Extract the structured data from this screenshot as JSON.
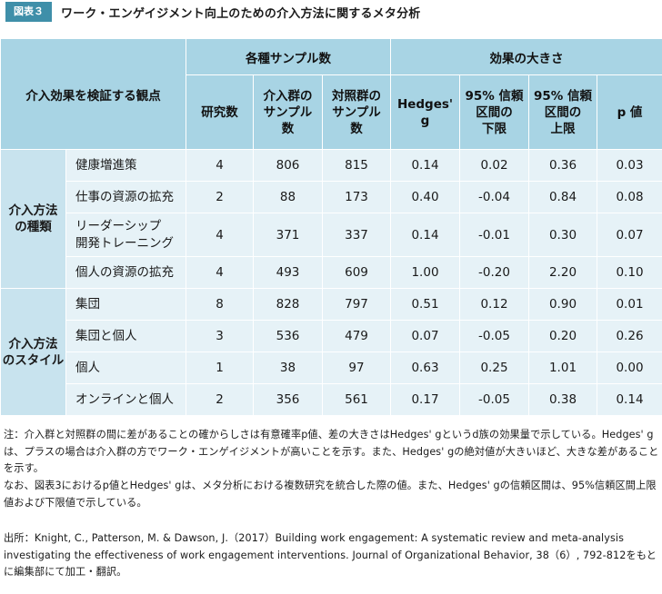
{
  "figure": {
    "label": "図表３",
    "title": "ワーク・エンゲイジメント向上のための介入方法に関するメタ分析"
  },
  "table": {
    "header": {
      "perspective": "介入効果を検証する観点",
      "group_sample": "各種サンプル数",
      "group_effect": "効果の大きさ",
      "studies": "研究数",
      "intervention_n": "介入群の\nサンプル\n数",
      "control_n": "対照群の\nサンプル\n数",
      "hedges_g": "Hedges' g",
      "ci_lower": "95% 信頼\n区間の\n下限",
      "ci_upper": "95% 信頼\n区間の\n上限",
      "p_value": "p 値"
    },
    "groups": [
      {
        "name": "介入方法\nの種類",
        "rows": [
          {
            "label": "健康増進策",
            "studies": "4",
            "intervention_n": "806",
            "control_n": "815",
            "g": "0.14",
            "lower": "0.02",
            "upper": "0.36",
            "p": "0.03"
          },
          {
            "label": "仕事の資源の拡充",
            "studies": "2",
            "intervention_n": "88",
            "control_n": "173",
            "g": "0.40",
            "lower": "-0.04",
            "upper": "0.84",
            "p": "0.08"
          },
          {
            "label": "リーダーシップ\n開発トレーニング",
            "studies": "4",
            "intervention_n": "371",
            "control_n": "337",
            "g": "0.14",
            "lower": "-0.01",
            "upper": "0.30",
            "p": "0.07"
          },
          {
            "label": "個人の資源の拡充",
            "studies": "4",
            "intervention_n": "493",
            "control_n": "609",
            "g": "1.00",
            "lower": "-0.20",
            "upper": "2.20",
            "p": "0.10"
          }
        ]
      },
      {
        "name": "介入方法\nのスタイル",
        "rows": [
          {
            "label": "集団",
            "studies": "8",
            "intervention_n": "828",
            "control_n": "797",
            "g": "0.51",
            "lower": "0.12",
            "upper": "0.90",
            "p": "0.01"
          },
          {
            "label": "集団と個人",
            "studies": "3",
            "intervention_n": "536",
            "control_n": "479",
            "g": "0.07",
            "lower": "-0.05",
            "upper": "0.20",
            "p": "0.26"
          },
          {
            "label": "個人",
            "studies": "1",
            "intervention_n": "38",
            "control_n": "97",
            "g": "0.63",
            "lower": "0.25",
            "upper": "1.01",
            "p": "0.00"
          },
          {
            "label": "オンラインと個人",
            "studies": "2",
            "intervention_n": "356",
            "control_n": "561",
            "g": "0.17",
            "lower": "-0.05",
            "upper": "0.38",
            "p": "0.14"
          }
        ]
      }
    ]
  },
  "notes": {
    "note1": "注：介入群と対照群の間に差があることの確からしさは有意確率p値、差の大きさはHedges' gというd族の効果量で示している。Hedges' gは、プラスの場合は介入群の方でワーク・エンゲイジメントが高いことを示す。また、Hedges' gの絶対値が大きいほど、大きな差があることを示す。",
    "note2": "なお、図表3におけるp値とHedges' gは、メタ分析における複数研究を統合した際の値。また、Hedges' gの信頼区間は、95%信頼区間上限値および下限値で示している。",
    "source": "出所：Knight, C., Patterson, M. & Dawson, J.（2017）Building work engagement: A systematic review and meta-analysis investigating the effectiveness of work engagement interventions. Journal of Organizational Behavior, 38（6）, 792-812をもとに編集部にて加工・翻訳。"
  },
  "colors": {
    "label_bg": "#3f8fa9",
    "header_bg": "#a8d4e4",
    "group_bg": "#c8e3ee",
    "cell_bg": "#e6f2f7"
  }
}
